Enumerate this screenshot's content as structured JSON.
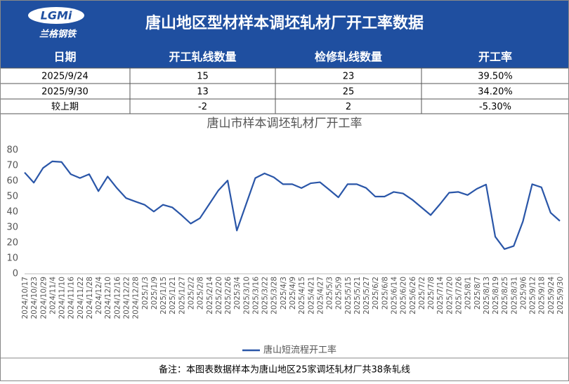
{
  "header": {
    "title": "唐山地区型材样本调坯轧材厂开工率数据",
    "logo_text": "兰格钢铁",
    "logo_mark": "LGMi"
  },
  "table": {
    "header": [
      "日期",
      "开工轧线数量",
      "检修轧线数量",
      "开工率"
    ],
    "rows": [
      [
        "2025/9/24",
        "15",
        "23",
        "39.50%"
      ],
      [
        "2025/9/30",
        "13",
        "25",
        "34.20%"
      ],
      [
        "较上期",
        "-2",
        "2",
        "-5.30%"
      ]
    ]
  },
  "chart_data": {
    "type": "line",
    "title": "唐山市样本调坯轧材厂开工率",
    "categories": [
      "2024/10/17",
      "2024/10/23",
      "2024/10/29",
      "2024/11/4",
      "2024/11/10",
      "2024/11/16",
      "2024/11/22",
      "2024/11/28",
      "2024/12/4",
      "2024/12/10",
      "2024/12/16",
      "2024/12/22",
      "2024/12/28",
      "2025/1/3",
      "2025/1/9",
      "2025/1/15",
      "2025/1/21",
      "2025/1/27",
      "2025/2/2",
      "2025/2/8",
      "2025/2/14",
      "2025/2/20",
      "2025/2/26",
      "2025/3/4",
      "2025/3/10",
      "2025/3/16",
      "2025/3/22",
      "2025/3/28",
      "2025/4/3",
      "2025/4/9",
      "2025/4/15",
      "2025/4/21",
      "2025/4/27",
      "2025/5/3",
      "2025/5/9",
      "2025/5/15",
      "2025/5/21",
      "2025/5/27",
      "2025/6/2",
      "2025/6/8",
      "2025/6/14",
      "2025/6/20",
      "2025/6/26",
      "2025/7/2",
      "2025/7/8",
      "2025/7/14",
      "2025/7/20",
      "2025/7/26",
      "2025/8/1",
      "2025/8/7",
      "2025/8/13",
      "2025/8/19",
      "2025/8/25",
      "2025/8/31",
      "2025/9/6",
      "2025/9/12",
      "2025/9/18",
      "2025/9/24",
      "2025/9/30"
    ],
    "series": [
      {
        "name": "唐山短流程开工率",
        "color": "#2a56a8",
        "values": [
          65.6,
          59,
          68.5,
          72.8,
          72.4,
          64.5,
          62,
          64.5,
          53.5,
          63,
          55.5,
          49,
          46.8,
          44.7,
          40.3,
          44.7,
          43,
          38,
          32.5,
          36,
          45,
          54,
          60.4,
          28,
          45,
          62,
          65,
          62.5,
          58,
          58,
          55.5,
          58.6,
          59.3,
          54.5,
          49.5,
          58,
          58,
          55.6,
          50,
          50,
          53,
          52,
          48,
          43,
          38,
          45,
          52.5,
          53,
          51,
          55,
          57.8,
          24,
          16,
          18,
          34,
          58,
          56,
          39.5,
          34.2
        ]
      }
    ],
    "ylim": [
      0,
      90
    ],
    "yticks": [
      0,
      10,
      20,
      30,
      40,
      50,
      60,
      70,
      80
    ],
    "legend": "bottom"
  },
  "footer": {
    "note": "备注：本图表数据样本为唐山地区25家调坯轧材厂共38条轧线"
  }
}
